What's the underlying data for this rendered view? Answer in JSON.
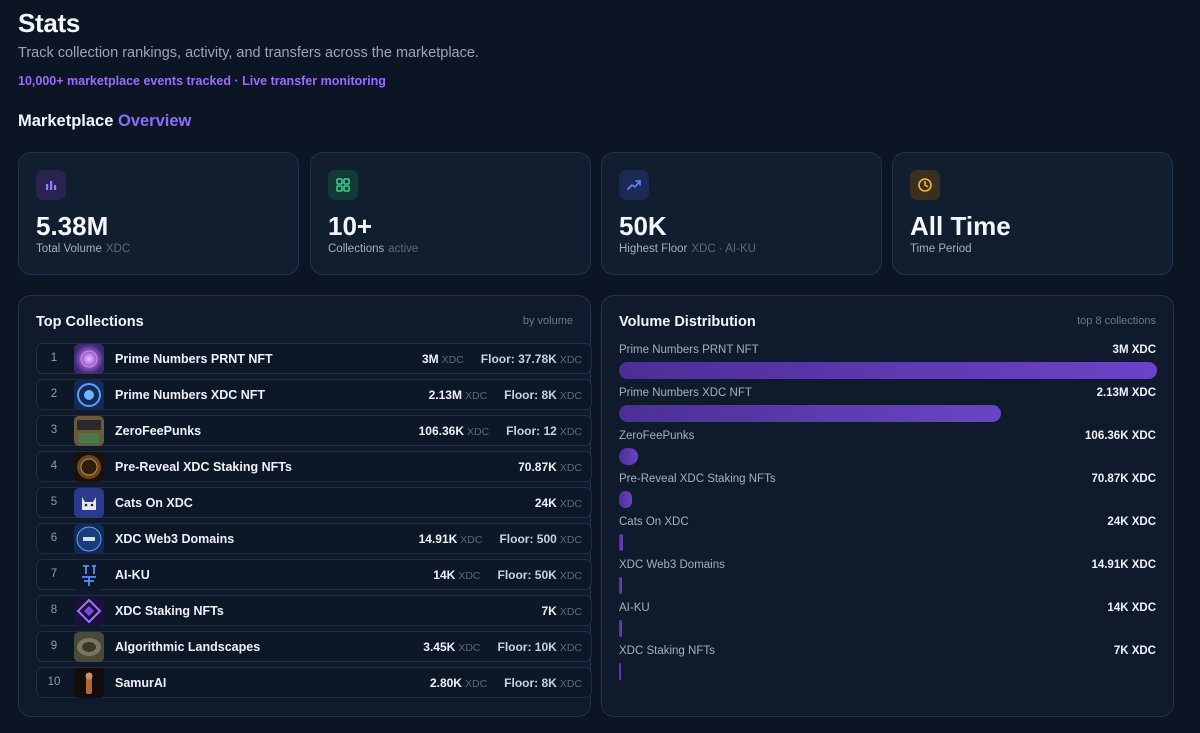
{
  "header": {
    "title": "Stats",
    "subtitle": "Track collection rankings, activity, and transfers across the marketplace.",
    "meta": "10,000+ marketplace events tracked · Live transfer monitoring"
  },
  "overview": {
    "title_main": "Marketplace",
    "title_accent": "Overview"
  },
  "stat_cards": [
    {
      "icon": "bar-chart-icon",
      "value": "5.38M",
      "label": "Total Volume",
      "sub": "XDC",
      "color": "#8b6cff"
    },
    {
      "icon": "grid-icon",
      "value": "10+",
      "label": "Collections",
      "sub": "active",
      "color": "#3ecf8e"
    },
    {
      "icon": "trend-up-icon",
      "value": "50K",
      "label": "Highest Floor",
      "sub": "XDC · AI-KU",
      "color": "#4f7cff"
    },
    {
      "icon": "clock-icon",
      "value": "All Time",
      "label": "Time Period",
      "sub": "",
      "color": "#f2b93b"
    }
  ],
  "top_collections": {
    "title": "Top Collections",
    "hint": "by volume",
    "unit": "XDC",
    "rows": [
      {
        "rank": "1",
        "name": "Prime Numbers PRNT NFT",
        "volume": "3M",
        "floor": "Floor: 37.78K"
      },
      {
        "rank": "2",
        "name": "Prime Numbers XDC NFT",
        "volume": "2.13M",
        "floor": "Floor: 8K"
      },
      {
        "rank": "3",
        "name": "ZeroFeePunks",
        "volume": "106.36K",
        "floor": "Floor: 12"
      },
      {
        "rank": "4",
        "name": "Pre-Reveal XDC Staking NFTs",
        "volume": "70.87K",
        "floor": ""
      },
      {
        "rank": "5",
        "name": "Cats On XDC",
        "volume": "24K",
        "floor": ""
      },
      {
        "rank": "6",
        "name": "XDC Web3 Domains",
        "volume": "14.91K",
        "floor": "Floor: 500"
      },
      {
        "rank": "7",
        "name": "AI-KU",
        "volume": "14K",
        "floor": "Floor: 50K"
      },
      {
        "rank": "8",
        "name": "XDC Staking NFTs",
        "volume": "7K",
        "floor": ""
      },
      {
        "rank": "9",
        "name": "Algorithmic Landscapes",
        "volume": "3.45K",
        "floor": "Floor: 10K"
      },
      {
        "rank": "10",
        "name": "SamurAI",
        "volume": "2.80K",
        "floor": "Floor: 8K"
      }
    ]
  },
  "volume_distribution": {
    "title": "Volume Distribution",
    "hint": "top 8 collections",
    "items": [
      {
        "name": "Prime Numbers PRNT NFT",
        "value_label": "3M XDC",
        "value": 3000000
      },
      {
        "name": "Prime Numbers XDC NFT",
        "value_label": "2.13M XDC",
        "value": 2130000
      },
      {
        "name": "ZeroFeePunks",
        "value_label": "106.36K XDC",
        "value": 106360
      },
      {
        "name": "Pre-Reveal XDC Staking NFTs",
        "value_label": "70.87K XDC",
        "value": 70870
      },
      {
        "name": "Cats On XDC",
        "value_label": "24K XDC",
        "value": 24000
      },
      {
        "name": "XDC Web3 Domains",
        "value_label": "14.91K XDC",
        "value": 14910
      },
      {
        "name": "AI-KU",
        "value_label": "14K XDC",
        "value": 14000
      },
      {
        "name": "XDC Staking NFTs",
        "value_label": "7K XDC",
        "value": 7000
      }
    ]
  }
}
